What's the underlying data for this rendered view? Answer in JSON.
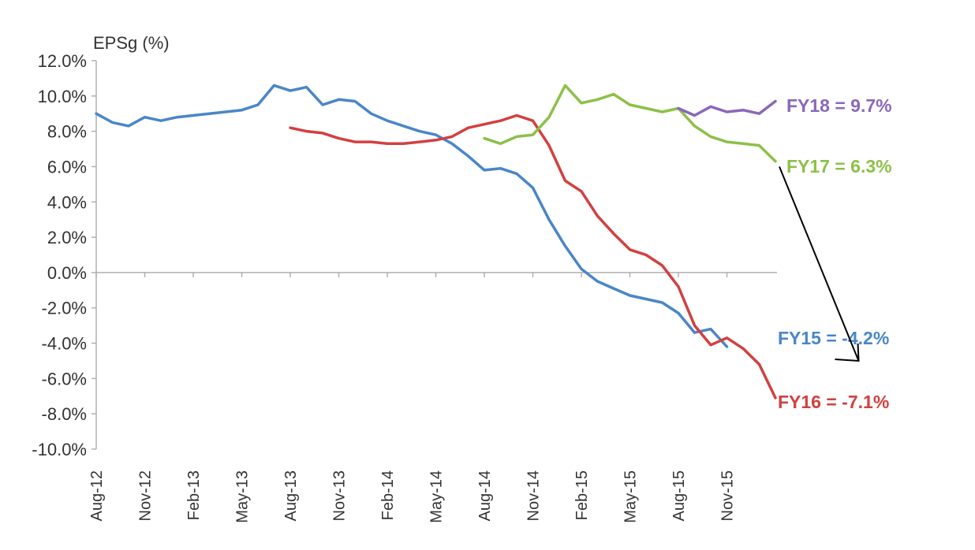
{
  "chart_data": {
    "type": "line",
    "title": "",
    "ylabel": "EPSg (%)",
    "xlabel": "",
    "ylim": [
      -10,
      12
    ],
    "y_ticks": [
      "12.0%",
      "10.0%",
      "8.0%",
      "6.0%",
      "4.0%",
      "2.0%",
      "0.0%",
      "-2.0%",
      "-4.0%",
      "-6.0%",
      "-8.0%",
      "-10.0%"
    ],
    "x_tick_labels": [
      "Aug-12",
      "Nov-12",
      "Feb-13",
      "May-13",
      "Aug-13",
      "Nov-13",
      "Feb-14",
      "May-14",
      "Aug-14",
      "Nov-14",
      "Feb-15",
      "May-15",
      "Aug-15",
      "Nov-15"
    ],
    "grid": false,
    "legend": "none",
    "series": [
      {
        "name": "FY15 = -4.2%",
        "color": "#4a86c8",
        "points": [
          [
            "Aug-12",
            9.0
          ],
          [
            "Sep-12",
            8.5
          ],
          [
            "Oct-12",
            8.3
          ],
          [
            "Nov-12",
            8.8
          ],
          [
            "Dec-12",
            8.6
          ],
          [
            "Jan-13",
            8.8
          ],
          [
            "Feb-13",
            8.9
          ],
          [
            "Mar-13",
            9.0
          ],
          [
            "Apr-13",
            9.1
          ],
          [
            "May-13",
            9.2
          ],
          [
            "Jun-13",
            9.5
          ],
          [
            "Jul-13",
            10.6
          ],
          [
            "Aug-13",
            10.3
          ],
          [
            "Sep-13",
            10.5
          ],
          [
            "Oct-13",
            9.5
          ],
          [
            "Nov-13",
            9.8
          ],
          [
            "Dec-13",
            9.7
          ],
          [
            "Jan-14",
            9.0
          ],
          [
            "Feb-14",
            8.6
          ],
          [
            "Mar-14",
            8.3
          ],
          [
            "Apr-14",
            8.0
          ],
          [
            "May-14",
            7.8
          ],
          [
            "Jun-14",
            7.3
          ],
          [
            "Jul-14",
            6.6
          ],
          [
            "Aug-14",
            5.8
          ],
          [
            "Sep-14",
            5.9
          ],
          [
            "Oct-14",
            5.6
          ],
          [
            "Nov-14",
            4.8
          ],
          [
            "Dec-14",
            3.0
          ],
          [
            "Jan-15",
            1.5
          ],
          [
            "Feb-15",
            0.2
          ],
          [
            "Mar-15",
            -0.5
          ],
          [
            "Apr-15",
            -0.9
          ],
          [
            "May-15",
            -1.3
          ],
          [
            "Jun-15",
            -1.5
          ],
          [
            "Jul-15",
            -1.7
          ],
          [
            "Aug-15",
            -2.3
          ],
          [
            "Sep-15",
            -3.4
          ],
          [
            "Oct-15",
            -3.2
          ],
          [
            "Nov-15",
            -4.2
          ]
        ]
      },
      {
        "name": "FY16 = -7.1%",
        "color": "#d24040",
        "points": [
          [
            "Aug-13",
            8.2
          ],
          [
            "Sep-13",
            8.0
          ],
          [
            "Oct-13",
            7.9
          ],
          [
            "Nov-13",
            7.6
          ],
          [
            "Dec-13",
            7.4
          ],
          [
            "Jan-14",
            7.4
          ],
          [
            "Feb-14",
            7.3
          ],
          [
            "Mar-14",
            7.3
          ],
          [
            "Apr-14",
            7.4
          ],
          [
            "May-14",
            7.5
          ],
          [
            "Jun-14",
            7.7
          ],
          [
            "Jul-14",
            8.2
          ],
          [
            "Aug-14",
            8.4
          ],
          [
            "Sep-14",
            8.6
          ],
          [
            "Oct-14",
            8.9
          ],
          [
            "Nov-14",
            8.6
          ],
          [
            "Dec-14",
            7.2
          ],
          [
            "Jan-15",
            5.2
          ],
          [
            "Feb-15",
            4.6
          ],
          [
            "Mar-15",
            3.2
          ],
          [
            "Apr-15",
            2.2
          ],
          [
            "May-15",
            1.3
          ],
          [
            "Jun-15",
            1.0
          ],
          [
            "Jul-15",
            0.4
          ],
          [
            "Aug-15",
            -0.8
          ],
          [
            "Sep-15",
            -3.0
          ],
          [
            "Oct-15",
            -4.1
          ],
          [
            "Nov-15",
            -3.7
          ],
          [
            "Dec-15",
            -4.3
          ],
          [
            "Jan-16",
            -5.2
          ],
          [
            "Feb-16",
            -7.1
          ]
        ]
      },
      {
        "name": "FY17 = 6.3%",
        "color": "#8dc048",
        "points": [
          [
            "Aug-14",
            7.6
          ],
          [
            "Sep-14",
            7.3
          ],
          [
            "Oct-14",
            7.7
          ],
          [
            "Nov-14",
            7.8
          ],
          [
            "Dec-14",
            8.8
          ],
          [
            "Jan-15",
            10.6
          ],
          [
            "Feb-15",
            9.6
          ],
          [
            "Mar-15",
            9.8
          ],
          [
            "Apr-15",
            10.1
          ],
          [
            "May-15",
            9.5
          ],
          [
            "Jun-15",
            9.3
          ],
          [
            "Jul-15",
            9.1
          ],
          [
            "Aug-15",
            9.3
          ],
          [
            "Sep-15",
            8.3
          ],
          [
            "Oct-15",
            7.7
          ],
          [
            "Nov-15",
            7.4
          ],
          [
            "Dec-15",
            7.3
          ],
          [
            "Jan-16",
            7.2
          ],
          [
            "Feb-16",
            6.3
          ]
        ]
      },
      {
        "name": "FY18 = 9.7%",
        "color": "#8a68b8",
        "points": [
          [
            "Aug-15",
            9.3
          ],
          [
            "Sep-15",
            8.9
          ],
          [
            "Oct-15",
            9.4
          ],
          [
            "Nov-15",
            9.1
          ],
          [
            "Dec-15",
            9.2
          ],
          [
            "Jan-16",
            9.0
          ],
          [
            "Feb-16",
            9.7
          ]
        ]
      }
    ],
    "annotations": [
      {
        "type": "arrow",
        "color": "#000000",
        "from": [
          "Feb-16",
          6.0
        ],
        "to": [
          "Jul-16",
          -5.0
        ]
      }
    ]
  }
}
